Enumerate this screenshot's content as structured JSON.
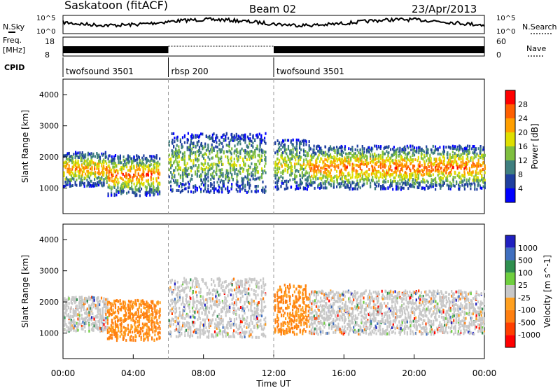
{
  "header": {
    "station": "Saskatoon (fitACF)",
    "beam": "Beam 02",
    "date": "23/Apr/2013"
  },
  "top_panels": {
    "nsky": {
      "label": "N.Sky",
      "ticks": [
        "10^5",
        "10^0"
      ]
    },
    "nsearch": {
      "label": "N.Search",
      "ticks": [
        "10^5",
        "10^0"
      ]
    },
    "freq": {
      "label_line1": "Freq.",
      "label_line2": "[MHz]",
      "ticks": [
        "18",
        "8"
      ]
    },
    "nave": {
      "label": "Nave",
      "ticks": [
        "60",
        "0"
      ]
    },
    "cpid": {
      "label": "CPID",
      "segments": [
        {
          "name": "twofsound 3501",
          "start_h": 0,
          "end_h": 6
        },
        {
          "name": "rbsp 200",
          "start_h": 6,
          "end_h": 12
        },
        {
          "name": "twofsound 3501",
          "start_h": 12,
          "end_h": 24
        }
      ]
    }
  },
  "colors": {
    "power": [
      "#0000ff",
      "#1f3f9f",
      "#3f7f7f",
      "#7fbf3f",
      "#dfdf00",
      "#ff9f00",
      "#ff5f00",
      "#ff0000"
    ],
    "velocity": [
      "#2020c0",
      "#3f6fbf",
      "#2f8f4f",
      "#6fcf3f",
      "#c8c8c8",
      "#ffa020",
      "#ff7f10",
      "#ff3f00",
      "#ff0000"
    ]
  },
  "chart_data": [
    {
      "type": "heatmap",
      "panel": "power",
      "ylabel": "Slant Range [km]",
      "x_range_hours": [
        0,
        24
      ],
      "ylim": [
        180,
        4500
      ],
      "yticks": [
        1000,
        2000,
        3000,
        4000
      ],
      "colorbar": {
        "label": "Power [dB]",
        "range": [
          0,
          32
        ],
        "ticks": [
          4,
          8,
          12,
          16,
          20,
          24,
          28
        ]
      },
      "bands": [
        {
          "x": [
            0,
            2.5
          ],
          "y": [
            1100,
            2200
          ],
          "level": 20
        },
        {
          "x": [
            2.5,
            5.5
          ],
          "y": [
            800,
            2100
          ],
          "level": 22
        },
        {
          "x": [
            6,
            11.5
          ],
          "y": [
            900,
            2800
          ],
          "level": 12
        },
        {
          "x": [
            12,
            14
          ],
          "y": [
            1000,
            2600
          ],
          "level": 14
        },
        {
          "x": [
            14,
            24
          ],
          "y": [
            1000,
            2400
          ],
          "level": 22
        }
      ]
    },
    {
      "type": "heatmap",
      "panel": "velocity",
      "ylabel": "Slant Range [km]",
      "xlabel": "Time UT",
      "x_range_hours": [
        0,
        24
      ],
      "ylim": [
        180,
        4500
      ],
      "yticks": [
        1000,
        2000,
        3000,
        4000
      ],
      "xticks": [
        "00:00",
        "04:00",
        "08:00",
        "12:00",
        "16:00",
        "20:00",
        "00:00"
      ],
      "colorbar": {
        "label": "Velocity [m s^-1]",
        "ticks": [
          1000,
          500,
          100,
          25,
          -25,
          -100,
          -500,
          -1000
        ]
      },
      "bands": [
        {
          "x": [
            0,
            2.5
          ],
          "y": [
            1100,
            2200
          ],
          "level": 0
        },
        {
          "x": [
            2.5,
            5.5
          ],
          "y": [
            800,
            2100
          ],
          "level": -150
        },
        {
          "x": [
            6,
            11.5
          ],
          "y": [
            900,
            2800
          ],
          "level": 0
        },
        {
          "x": [
            12,
            14
          ],
          "y": [
            1000,
            2600
          ],
          "level": -200
        },
        {
          "x": [
            14,
            24
          ],
          "y": [
            1000,
            2400
          ],
          "level": 0
        }
      ]
    }
  ]
}
